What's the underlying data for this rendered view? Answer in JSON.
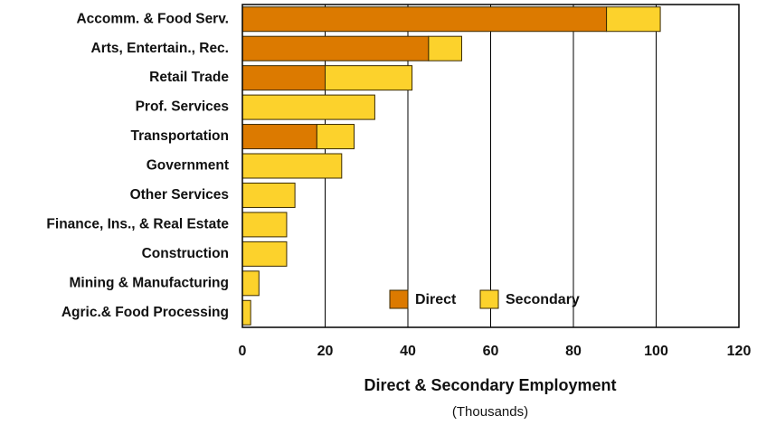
{
  "chart_data": {
    "type": "stacked-barh",
    "categories": [
      "Accomm. & Food Serv.",
      "Arts, Entertain., Rec.",
      "Retail Trade",
      "Prof. Services",
      "Transportation",
      "Government",
      "Other Services",
      "Finance, Ins., & Real Estate",
      "Construction",
      "Mining & Manufacturing",
      "Agric.& Food Processing"
    ],
    "series": [
      {
        "name": "Direct",
        "color": "#dc7a00",
        "values": [
          88,
          45,
          20,
          0,
          18,
          0,
          0,
          0,
          0,
          0,
          0
        ]
      },
      {
        "name": "Secondary",
        "color": "#fcd22c",
        "values": [
          13,
          8,
          21,
          32,
          9,
          24,
          12.7,
          10.7,
          10.7,
          4,
          2
        ]
      }
    ],
    "xlim": [
      0,
      120
    ],
    "xticks": [
      0,
      20,
      40,
      60,
      80,
      100,
      120
    ],
    "grid": true,
    "xlabel": "Direct & Secondary Employment",
    "xlabel_sub": "(Thousands)"
  }
}
